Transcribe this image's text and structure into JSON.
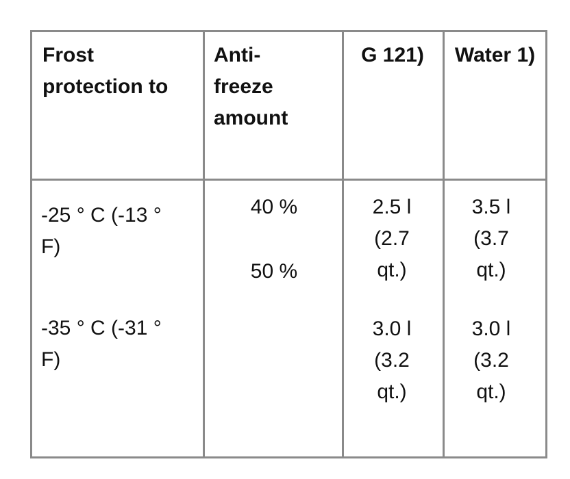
{
  "table": {
    "header": [
      "Frost protection to",
      "Anti- freeze amount",
      "G 121)",
      "Water 1)"
    ],
    "rows": [
      [
        [
          "-25 ° C (-13 ° F)",
          "-35 ° C (-31 ° F)"
        ],
        [
          "40 %",
          "50 %"
        ],
        [
          "2.5 l (2.7 qt.)",
          "3.0 l (3.2 qt.)"
        ],
        [
          "3.5 l (3.7 qt.)",
          "3.0 l (3.2 qt.)"
        ]
      ]
    ]
  }
}
